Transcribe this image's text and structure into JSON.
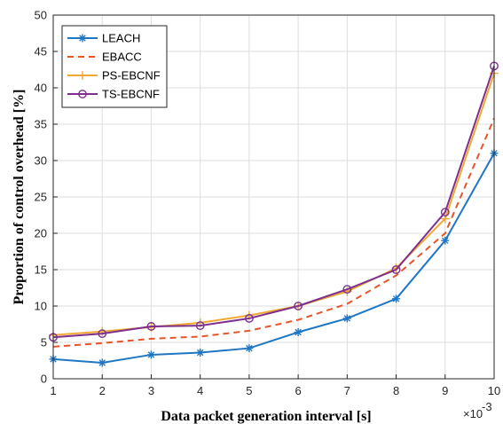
{
  "chart_data": {
    "type": "line",
    "xlabel": "Data packet generation interval [s]",
    "ylabel": "Proportion of control overhead [%]",
    "x_exponent_label": "×10",
    "x_exponent_power": "-3",
    "xlim": [
      1,
      10
    ],
    "ylim": [
      0,
      50
    ],
    "xticks": [
      1,
      2,
      3,
      4,
      5,
      6,
      7,
      8,
      9,
      10
    ],
    "yticks": [
      0,
      5,
      10,
      15,
      20,
      25,
      30,
      35,
      40,
      45,
      50
    ],
    "grid": true,
    "legend_position": "top-left",
    "x": [
      1,
      2,
      3,
      4,
      5,
      6,
      7,
      8,
      9,
      10
    ],
    "series": [
      {
        "name": "LEACH",
        "values": [
          2.7,
          2.2,
          3.3,
          3.6,
          4.2,
          6.4,
          8.3,
          11.0,
          19.0,
          31.0
        ],
        "color": "#1f77c4",
        "style": "solid",
        "marker": "star"
      },
      {
        "name": "EBACC",
        "values": [
          4.4,
          4.9,
          5.5,
          5.8,
          6.6,
          8.1,
          10.3,
          14.2,
          20.0,
          35.8
        ],
        "color": "#e8542a",
        "style": "dashed",
        "marker": "none"
      },
      {
        "name": "PS-EBCNF",
        "values": [
          6.0,
          6.5,
          7.1,
          7.7,
          8.7,
          10.0,
          12.0,
          15.2,
          22.0,
          42.0
        ],
        "color": "#f0a832",
        "style": "solid",
        "marker": "plus"
      },
      {
        "name": "TS-EBCNF",
        "values": [
          5.7,
          6.2,
          7.2,
          7.3,
          8.3,
          10.0,
          12.3,
          15.0,
          22.9,
          43.0
        ],
        "color": "#7e2f8e",
        "style": "solid",
        "marker": "circle"
      }
    ]
  }
}
